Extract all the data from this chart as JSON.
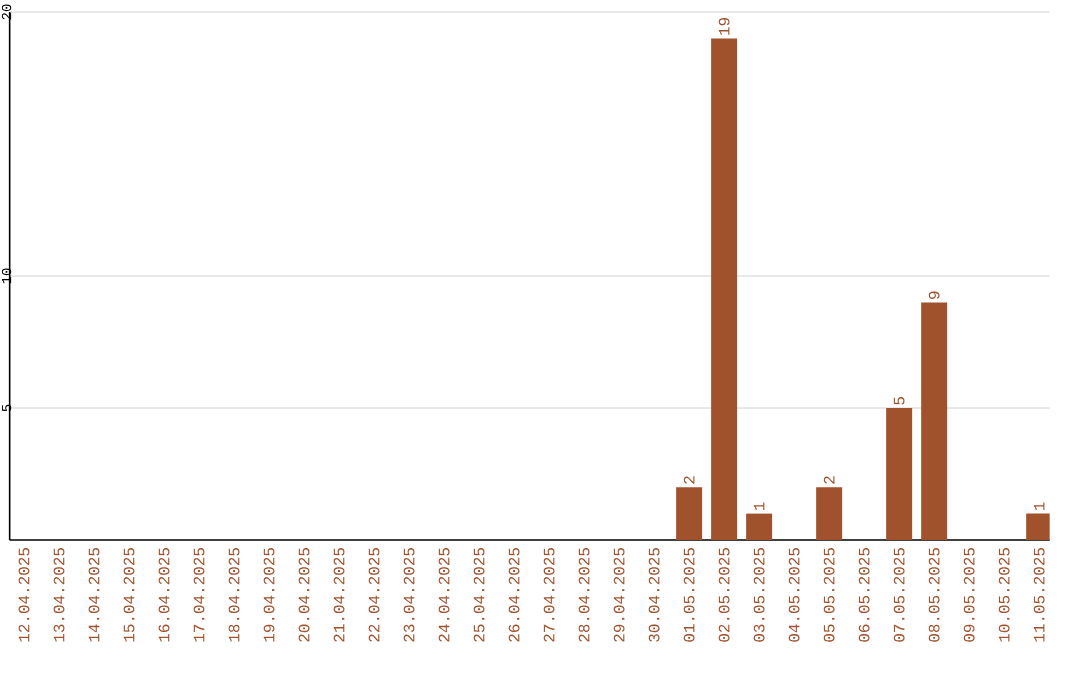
{
  "chart_data": {
    "type": "bar",
    "categories": [
      "12.04.2025",
      "13.04.2025",
      "14.04.2025",
      "15.04.2025",
      "16.04.2025",
      "17.04.2025",
      "18.04.2025",
      "19.04.2025",
      "20.04.2025",
      "21.04.2025",
      "22.04.2025",
      "23.04.2025",
      "24.04.2025",
      "25.04.2025",
      "26.04.2025",
      "27.04.2025",
      "28.04.2025",
      "29.04.2025",
      "30.04.2025",
      "01.05.2025",
      "02.05.2025",
      "03.05.2025",
      "04.05.2025",
      "05.05.2025",
      "06.05.2025",
      "07.05.2025",
      "08.05.2025",
      "09.05.2025",
      "10.05.2025",
      "11.05.2025"
    ],
    "values": [
      0,
      0,
      0,
      0,
      0,
      0,
      0,
      0,
      0,
      0,
      0,
      0,
      0,
      0,
      0,
      0,
      0,
      0,
      0,
      2,
      19,
      1,
      0,
      2,
      0,
      5,
      9,
      0,
      0,
      1
    ],
    "value_labels": [
      null,
      null,
      null,
      null,
      null,
      null,
      null,
      null,
      null,
      null,
      null,
      null,
      null,
      null,
      null,
      null,
      null,
      null,
      null,
      "2",
      "19",
      "1",
      null,
      "2",
      null,
      "5",
      "9",
      null,
      null,
      "1"
    ],
    "color": "#a0522d",
    "ylim": [
      0,
      20
    ],
    "yticks": [
      5,
      10,
      20
    ],
    "grid": "y"
  }
}
